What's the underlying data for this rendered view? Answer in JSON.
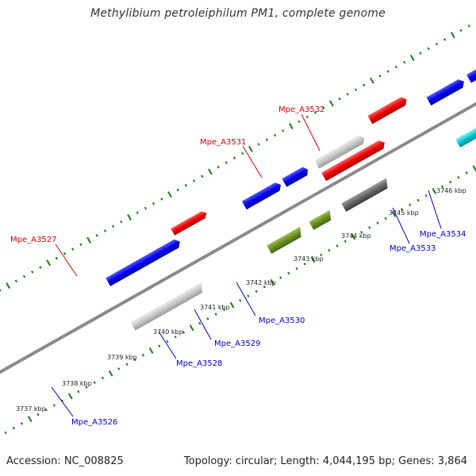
{
  "title": "Methylibium petroleiphilum PM1, complete genome",
  "footer": {
    "accession": "Accession: NC_008825",
    "summary": "Topology: circular; Length: 4,044,195 bp; Genes: 3,864"
  },
  "scale_labels": [
    "3737 kbp",
    "3738 kbp",
    "3739 kbp",
    "3740 kbp",
    "3741 kbp",
    "3742 kbp",
    "3743 kbp",
    "3744 kbp",
    "3745 kbp",
    "3746 kbp"
  ],
  "gene_labels": [
    {
      "name": "Mpe_A3527",
      "color": "#dd0000"
    },
    {
      "name": "Mpe_A3531",
      "color": "#dd0000"
    },
    {
      "name": "Mpe_A3532",
      "color": "#dd0000"
    },
    {
      "name": "Mpe_A3526",
      "color": "#0000cc"
    },
    {
      "name": "Mpe_A3528",
      "color": "#0000cc"
    },
    {
      "name": "Mpe_A3529",
      "color": "#0000cc"
    },
    {
      "name": "Mpe_A3530",
      "color": "#0000cc"
    },
    {
      "name": "Mpe_A3533",
      "color": "#0000cc"
    },
    {
      "name": "Mpe_A3534",
      "color": "#0000cc"
    }
  ],
  "colors": {
    "backbone": "#8a8a8a",
    "tick": "#1a7a1a",
    "red": "#ee0000",
    "blue": "#0000ee",
    "light_gray": "#c8c8c8",
    "dark_gray": "#666666",
    "olive": "#6b8e23",
    "cyan": "#00c8d0",
    "orange": "#ff8c00",
    "slate": "#483d8b"
  }
}
